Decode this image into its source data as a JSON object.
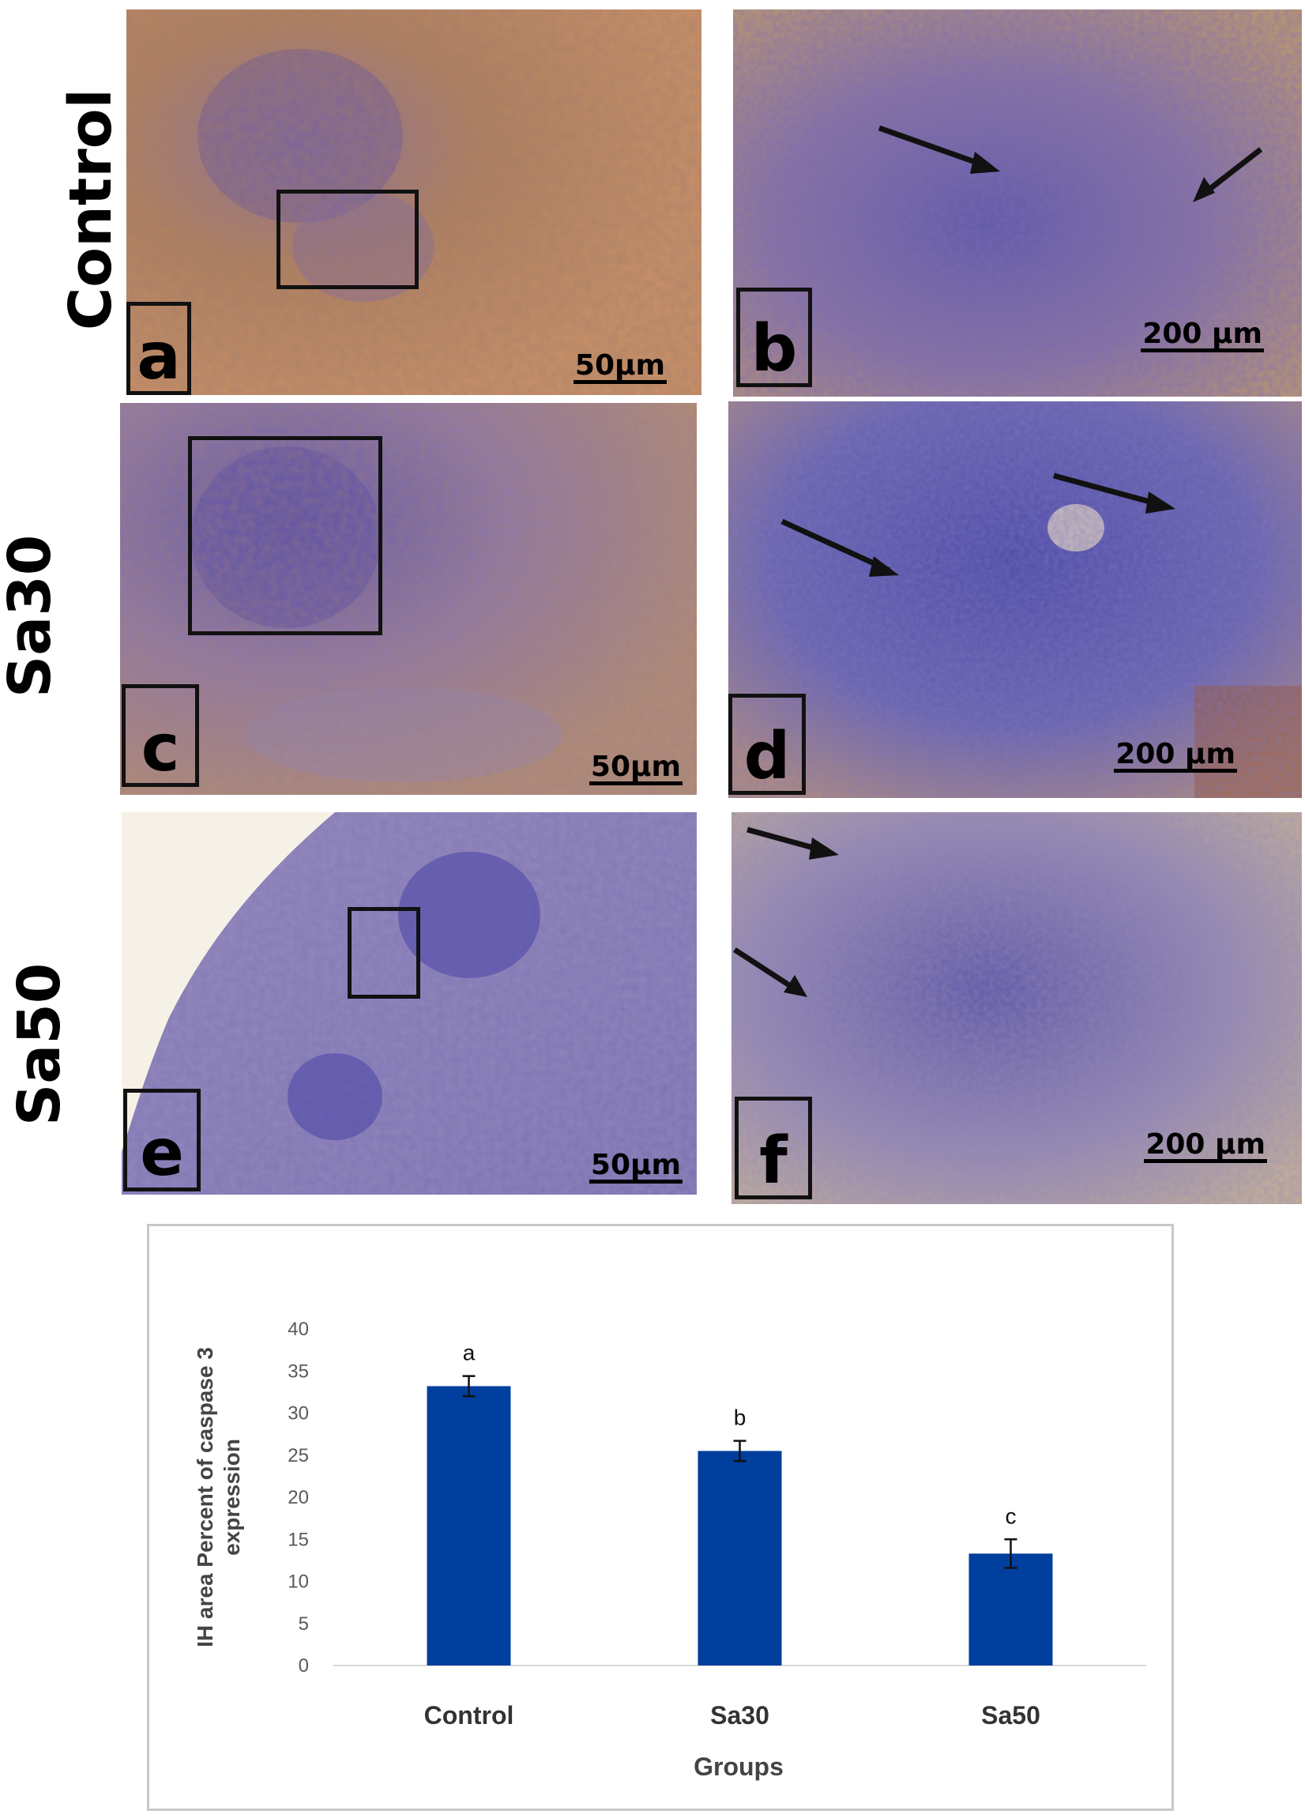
{
  "rows": [
    {
      "label": "Control"
    },
    {
      "label": "Sa30"
    },
    {
      "label": "Sa50"
    }
  ],
  "panels": [
    {
      "letter": "a",
      "scale": "50µm"
    },
    {
      "letter": "b",
      "scale": "200 µm"
    },
    {
      "letter": "c",
      "scale": "50µm"
    },
    {
      "letter": "d",
      "scale": "200 µm"
    },
    {
      "letter": "e",
      "scale": "50µm"
    },
    {
      "letter": "f",
      "scale": "200 µm"
    }
  ],
  "colors": {
    "bar": "#003f9e",
    "axis": "#d9d9d9",
    "tissue_brown": "#b07a55",
    "tissue_purple": "#6a5aa8"
  },
  "chart_data": {
    "type": "bar",
    "categories": [
      "Control",
      "Sa30",
      "Sa50"
    ],
    "values": [
      33.2,
      25.5,
      13.3
    ],
    "errors": [
      1.2,
      1.2,
      1.7
    ],
    "significance_letters": [
      "a",
      "b",
      "c"
    ],
    "xlabel": "Groups",
    "ylabel": "IH area Percent  of caspase 3 expression",
    "ylabel_lines": [
      "IH area Percent  of caspase 3",
      "expression"
    ],
    "ylim": [
      0,
      40
    ],
    "yticks": [
      0,
      5,
      10,
      15,
      20,
      25,
      30,
      35,
      40
    ],
    "grid": false,
    "legend": "none"
  }
}
